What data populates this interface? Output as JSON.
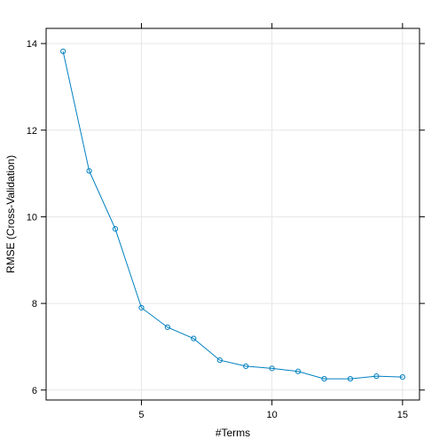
{
  "chart_data": {
    "type": "line",
    "title": "",
    "xlabel": "#Terms",
    "ylabel": "RMSE (Cross-Validation)",
    "xlim": [
      1.35,
      15.65
    ],
    "ylim": [
      5.77,
      14.35
    ],
    "x_ticks": [
      5,
      10,
      15
    ],
    "y_ticks": [
      6,
      8,
      10,
      12,
      14
    ],
    "grid": true,
    "colors": {
      "series": "#0080C0",
      "grid": "#E6E6E6",
      "axis": "#000000"
    },
    "series": [
      {
        "x": [
          2,
          3,
          4,
          5,
          6,
          7,
          8,
          9,
          10,
          11,
          12,
          13,
          14,
          15
        ],
        "y": [
          13.82,
          11.06,
          9.72,
          7.9,
          7.45,
          7.19,
          6.69,
          6.55,
          6.5,
          6.43,
          6.26,
          6.26,
          6.32,
          6.3
        ]
      }
    ]
  }
}
